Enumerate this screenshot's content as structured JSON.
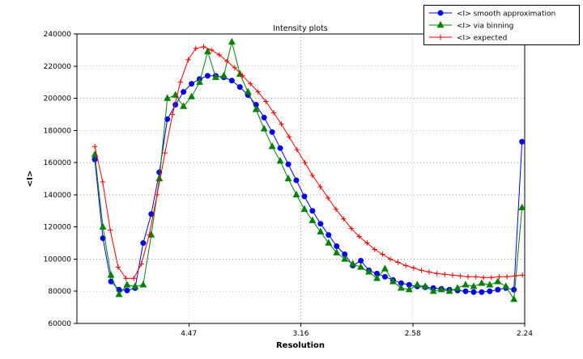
{
  "chart_data": {
    "type": "line",
    "title": "Intensity plots",
    "xlabel": "Resolution",
    "ylabel": "<I>",
    "xlim": [
      0,
      0.2
    ],
    "ylim": [
      60000,
      240000
    ],
    "grid": true,
    "legend_position": "upper right",
    "y_ticks": [
      60000,
      80000,
      100000,
      120000,
      140000,
      160000,
      180000,
      200000,
      220000,
      240000
    ],
    "x_ticks": [
      {
        "value": 0.05,
        "label": "4.47"
      },
      {
        "value": 0.1,
        "label": "3.16"
      },
      {
        "value": 0.15,
        "label": "2.58"
      },
      {
        "value": 0.2,
        "label": "2.24"
      }
    ],
    "series": [
      {
        "name": "<I> smooth approximation",
        "slug": "smooth-approximation",
        "color": "#0000ee",
        "marker": "circle",
        "x": [
          0.008,
          0.0116,
          0.0152,
          0.0188,
          0.0224,
          0.026,
          0.0296,
          0.0332,
          0.0368,
          0.0404,
          0.044,
          0.0476,
          0.0512,
          0.0548,
          0.0584,
          0.062,
          0.0656,
          0.0692,
          0.0728,
          0.0764,
          0.08,
          0.0836,
          0.0872,
          0.0908,
          0.0944,
          0.098,
          0.1016,
          0.1052,
          0.1088,
          0.1124,
          0.116,
          0.1196,
          0.1232,
          0.1268,
          0.1304,
          0.134,
          0.1376,
          0.1412,
          0.1448,
          0.1484,
          0.152,
          0.1556,
          0.1592,
          0.1628,
          0.1664,
          0.17,
          0.1736,
          0.1772,
          0.1808,
          0.1844,
          0.188,
          0.1916,
          0.1952,
          0.1988
        ],
        "y": [
          162000,
          113000,
          86000,
          81000,
          80500,
          82000,
          110000,
          128000,
          154000,
          187000,
          196000,
          204000,
          209000,
          212000,
          214000,
          214000,
          213000,
          211000,
          207000,
          202000,
          196000,
          188000,
          179000,
          169000,
          159000,
          149000,
          139000,
          130000,
          122000,
          115000,
          108000,
          103000,
          96000,
          99000,
          93000,
          91000,
          89000,
          87000,
          85000,
          84000,
          83000,
          82500,
          82000,
          81500,
          81000,
          80500,
          80000,
          79500,
          79500,
          80000,
          81000,
          82000,
          81000,
          173000
        ]
      },
      {
        "name": "<I> via binning",
        "slug": "via-binning",
        "color": "#008000",
        "marker": "triangle",
        "x": [
          0.008,
          0.0116,
          0.0152,
          0.0188,
          0.0224,
          0.026,
          0.0296,
          0.0332,
          0.0368,
          0.0404,
          0.044,
          0.0476,
          0.0512,
          0.0548,
          0.0584,
          0.062,
          0.0656,
          0.0692,
          0.0728,
          0.0764,
          0.08,
          0.0836,
          0.0872,
          0.0908,
          0.0944,
          0.098,
          0.1016,
          0.1052,
          0.1088,
          0.1124,
          0.116,
          0.1196,
          0.1232,
          0.1268,
          0.1304,
          0.134,
          0.1376,
          0.1412,
          0.1448,
          0.1484,
          0.152,
          0.1556,
          0.1592,
          0.1628,
          0.1664,
          0.17,
          0.1736,
          0.1772,
          0.1808,
          0.1844,
          0.188,
          0.1916,
          0.1952,
          0.1988
        ],
        "y": [
          165000,
          120000,
          90000,
          78000,
          84000,
          83000,
          84000,
          115000,
          150000,
          200000,
          202000,
          195000,
          201000,
          210000,
          229000,
          213000,
          214000,
          235000,
          215000,
          204000,
          193000,
          181000,
          170000,
          161000,
          150000,
          140000,
          131000,
          124000,
          117000,
          110000,
          104000,
          100000,
          97000,
          95000,
          92000,
          88000,
          94000,
          86000,
          82000,
          81000,
          84000,
          83000,
          80000,
          81000,
          80000,
          82000,
          84000,
          83000,
          85000,
          84000,
          86000,
          83000,
          75000,
          132000
        ]
      },
      {
        "name": "<I> expected",
        "slug": "expected",
        "color": "#ee0000",
        "marker": "plus",
        "x": [
          0.008,
          0.0115,
          0.0149,
          0.0184,
          0.0219,
          0.0254,
          0.0288,
          0.0323,
          0.0358,
          0.0393,
          0.0427,
          0.0462,
          0.0497,
          0.0531,
          0.0566,
          0.0601,
          0.0636,
          0.067,
          0.0705,
          0.074,
          0.0775,
          0.0809,
          0.0844,
          0.0879,
          0.0913,
          0.0948,
          0.0983,
          0.1018,
          0.1052,
          0.1087,
          0.1122,
          0.1157,
          0.1191,
          0.1226,
          0.1261,
          0.1296,
          0.133,
          0.1365,
          0.14,
          0.1434,
          0.1469,
          0.1504,
          0.1539,
          0.1573,
          0.1608,
          0.1643,
          0.1678,
          0.1712,
          0.1747,
          0.1782,
          0.1816,
          0.1851,
          0.1886,
          0.1921,
          0.1955,
          0.199
        ],
        "y": [
          170000,
          148000,
          118000,
          95000,
          88000,
          88000,
          97000,
          115000,
          140000,
          166000,
          190000,
          210000,
          224000,
          231000,
          232000,
          230000,
          227000,
          223000,
          219000,
          214000,
          209000,
          204000,
          198000,
          191000,
          184000,
          176000,
          168000,
          160000,
          152000,
          145000,
          138000,
          131000,
          125000,
          119000,
          114000,
          110000,
          106000,
          103000,
          100000,
          98000,
          96000,
          94500,
          93000,
          92000,
          91000,
          90500,
          90000,
          89500,
          89000,
          89000,
          88500,
          88500,
          89000,
          89000,
          89500,
          90000
        ]
      }
    ]
  }
}
